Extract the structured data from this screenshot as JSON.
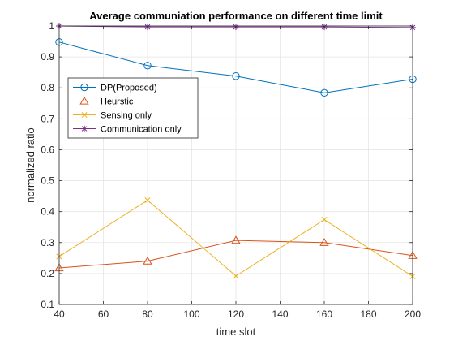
{
  "chart_data": {
    "type": "line",
    "title": "Average communiation performance on different time limit",
    "xlabel": "time slot",
    "ylabel": "normalized ratio",
    "x": [
      40,
      80,
      120,
      160,
      200
    ],
    "xlim": [
      40,
      200
    ],
    "ylim": [
      0.1,
      1.0
    ],
    "xticks": [
      40,
      60,
      80,
      100,
      120,
      140,
      160,
      180,
      200
    ],
    "yticks": [
      0.1,
      0.2,
      0.3,
      0.4,
      0.5,
      0.6,
      0.7,
      0.8,
      0.9,
      1
    ],
    "grid": true,
    "legend_position": "left",
    "series": [
      {
        "name": "DP(Proposed)",
        "color": "#0072BD",
        "marker": "circle",
        "values": [
          0.948,
          0.872,
          0.838,
          0.784,
          0.828
        ]
      },
      {
        "name": "Heurstic",
        "color": "#D95319",
        "marker": "triangle",
        "values": [
          0.218,
          0.24,
          0.307,
          0.3,
          0.258
        ]
      },
      {
        "name": "Sensing only",
        "color": "#EDB120",
        "marker": "x",
        "values": [
          0.255,
          0.437,
          0.192,
          0.374,
          0.191
        ]
      },
      {
        "name": "Communication only",
        "color": "#7E2F8E",
        "marker": "star",
        "values": [
          1.0,
          0.997,
          0.997,
          0.997,
          0.995
        ]
      }
    ]
  }
}
